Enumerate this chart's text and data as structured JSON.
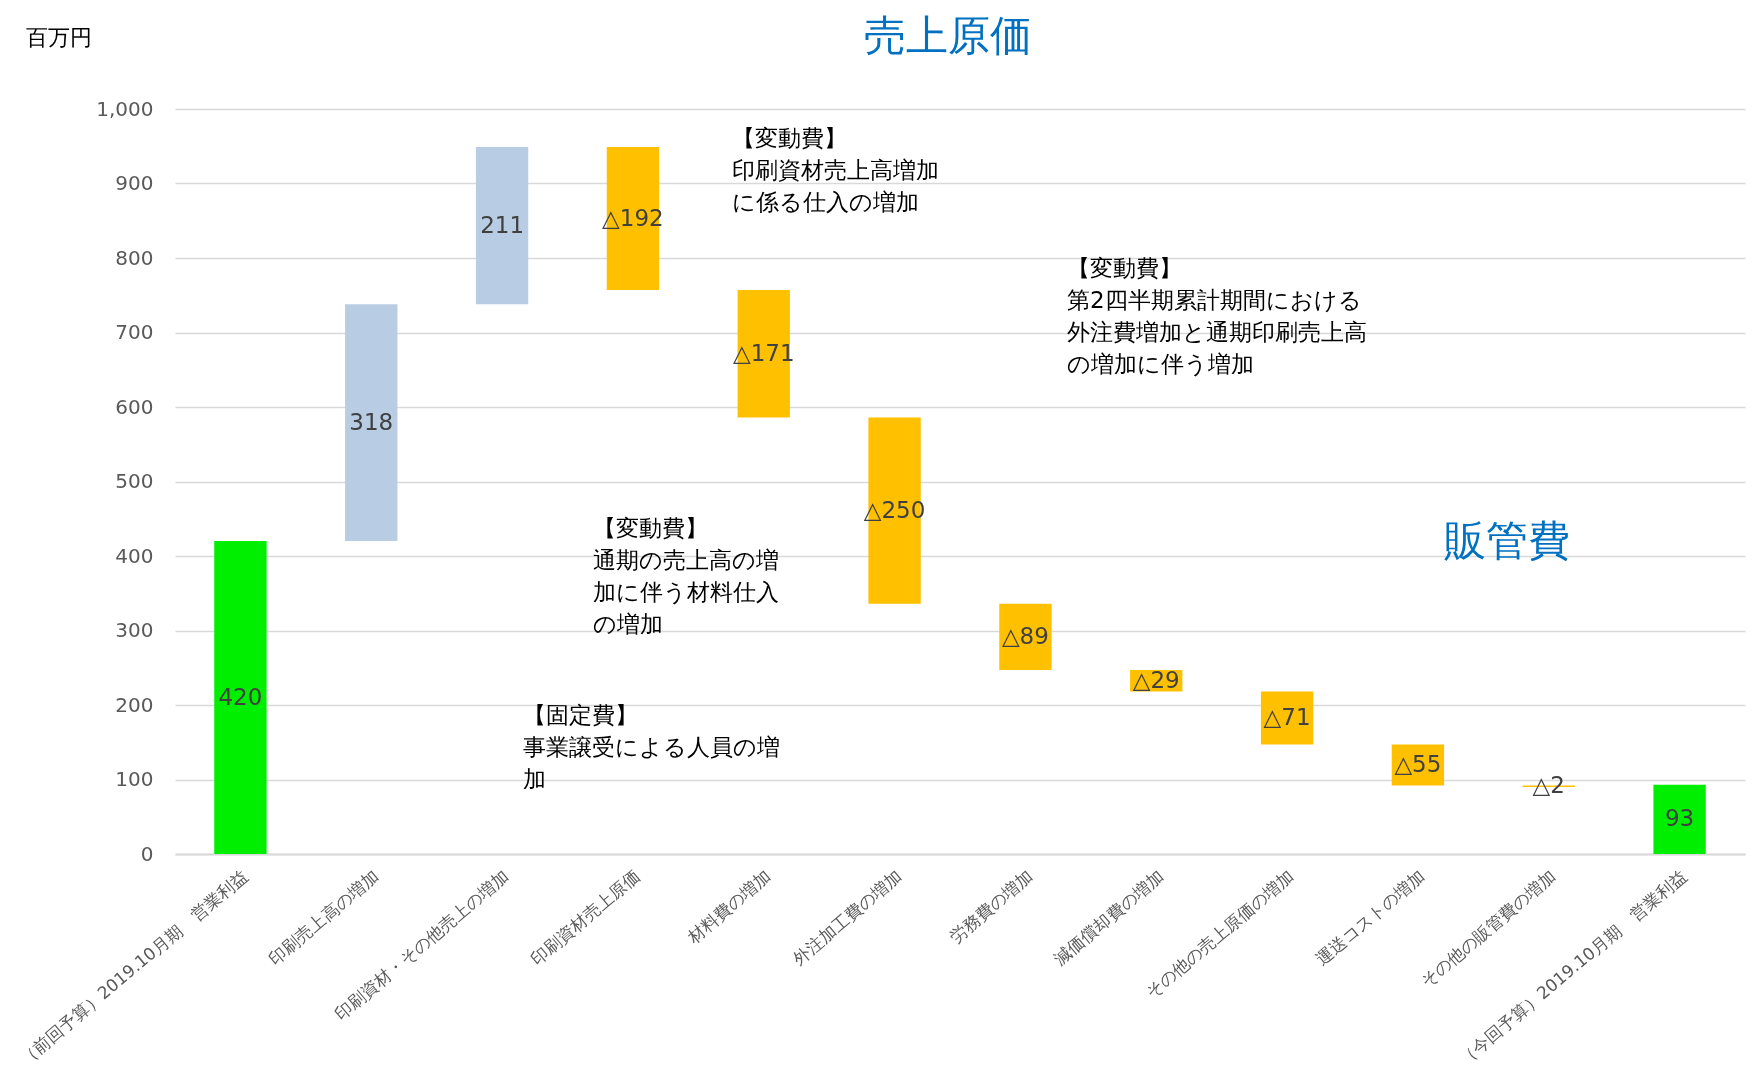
{
  "chart_data": {
    "type": "bar",
    "ylabel": "百万円",
    "categories": [
      "（前回予算）2019.10月期　営業利益",
      "印刷売上高の増加",
      "印刷資材・その他売上の増加",
      "印刷資材売上原価",
      "材料費の増加",
      "外注加工費の増加",
      "労務費の増加",
      "減価償却費の増加",
      "その他の売上原価の増加",
      "運送コストの増加",
      "その他の販管費の増加",
      "（今回予算）2019.10月期　営業利益"
    ],
    "values": [
      420,
      318,
      211,
      -192,
      -171,
      -250,
      -89,
      -29,
      -71,
      -55,
      -2,
      93
    ],
    "base": [
      0,
      420,
      738,
      949,
      757,
      586,
      336,
      247,
      218,
      147,
      92,
      0
    ],
    "colors": [
      "#00ee00",
      "#b8cce4",
      "#b8cce4",
      "#ffc000",
      "#ffc000",
      "#ffc000",
      "#ffc000",
      "#ffc000",
      "#ffc000",
      "#ffc000",
      "#ffc000",
      "#00ee00"
    ],
    "value_labels": [
      "420",
      "318",
      "211",
      "△192",
      "△171",
      "△250",
      "△89",
      "△29",
      "△71",
      "△55",
      "△2",
      "93"
    ],
    "ylim": [
      0,
      1000
    ],
    "yticks": [
      0,
      {
        "value": 100,
        "label": "100"
      },
      200,
      300,
      400,
      500,
      600,
      700,
      800,
      900,
      {
        "value": 1000,
        "label": "1,000"
      }
    ],
    "grid": "y",
    "annotations": [
      "売上原価",
      "販管費",
      "【変動費】",
      "印刷資材売上高増加に係る仕入の増加",
      "【変動費】",
      "第2四半期累計期間における外注費増加と通期印刷売上高の増加に伴う増加",
      "【変動費】",
      "通期の売上高の増加に伴う材料仕入の増加",
      "【固定費】",
      "事業譲受による人員の増加"
    ]
  }
}
